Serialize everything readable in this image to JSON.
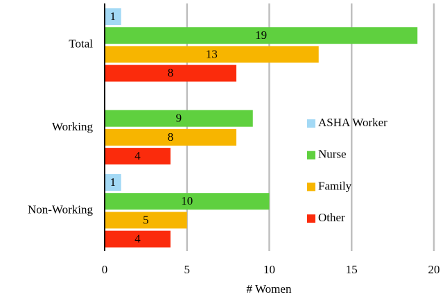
{
  "chart_data": {
    "type": "hbar",
    "categories": [
      "Total",
      "Working",
      "Non-Working"
    ],
    "series": [
      {
        "name": "ASHA Worker",
        "color": "#a3d9f5",
        "values": [
          1,
          null,
          1
        ]
      },
      {
        "name": "Nurse",
        "color": "#5fd03f",
        "values": [
          19,
          9,
          10
        ]
      },
      {
        "name": "Family",
        "color": "#f7b500",
        "values": [
          13,
          8,
          5
        ]
      },
      {
        "name": "Other",
        "color": "#fb2b0c",
        "values": [
          8,
          4,
          4
        ]
      }
    ],
    "xlabel": "# Women",
    "xlim": [
      0,
      20
    ],
    "xticks": [
      0,
      5,
      10,
      15,
      20
    ],
    "grid": true,
    "legend": "right"
  }
}
